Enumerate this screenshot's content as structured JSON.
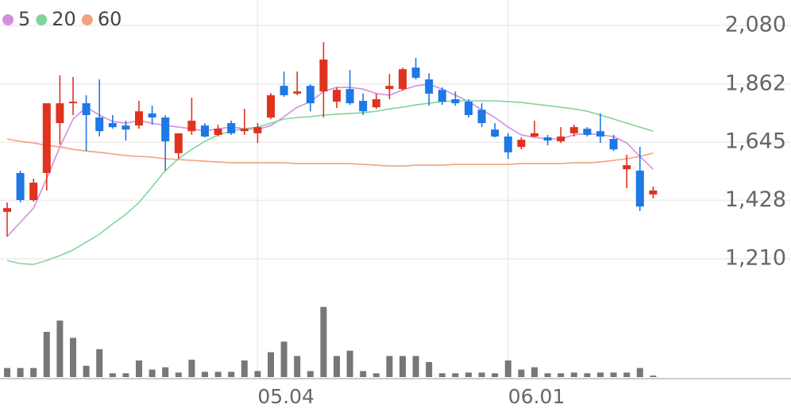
{
  "chart_data": {
    "type": "candlestick",
    "categories": [
      null,
      null,
      null,
      null,
      null,
      null,
      null,
      null,
      null,
      null,
      null,
      null,
      null,
      null,
      null,
      null,
      null,
      null,
      null,
      "05.04",
      null,
      null,
      null,
      null,
      null,
      null,
      null,
      null,
      null,
      null,
      null,
      null,
      null,
      null,
      null,
      null,
      null,
      null,
      "06.01",
      null,
      null,
      null,
      null,
      null,
      null,
      null,
      null,
      null,
      null,
      null
    ],
    "ylim": [
      1145,
      2175
    ],
    "yticks": [
      {
        "value": 2080,
        "label": "2,080"
      },
      {
        "value": 1862,
        "label": "1,862"
      },
      {
        "value": 1645,
        "label": "1,645"
      },
      {
        "value": 1428,
        "label": "1,428"
      },
      {
        "value": 1210,
        "label": "1,210"
      }
    ],
    "grid": true,
    "up_color": "#e0331f",
    "down_color": "#1e78e6",
    "candles": {
      "open": [
        1385,
        1530,
        1429,
        1530,
        1716,
        1790,
        1790,
        1737,
        1716,
        1707,
        1707,
        1752,
        1737,
        1604,
        1686,
        1707,
        1672,
        1716,
        1686,
        1678,
        1737,
        1855,
        1826,
        1855,
        1834,
        1796,
        1843,
        1799,
        1775,
        1843,
        1843,
        1923,
        1879,
        1840,
        1805,
        1796,
        1766,
        1692,
        1666,
        1627,
        1666,
        1663,
        1648,
        1678,
        1695,
        1686,
        1657,
        1544,
        1539,
        1450
      ],
      "high": [
        1420,
        1539,
        1509,
        1790,
        1894,
        1888,
        1820,
        1879,
        1746,
        1725,
        1799,
        1781,
        1746,
        1678,
        1811,
        1716,
        1710,
        1725,
        1769,
        1716,
        1828,
        1908,
        1908,
        1861,
        2018,
        1849,
        1914,
        1826,
        1826,
        1899,
        1923,
        1959,
        1902,
        1849,
        1834,
        1805,
        1790,
        1716,
        1678,
        1663,
        1725,
        1672,
        1701,
        1710,
        1701,
        1752,
        1672,
        1598,
        1627,
        1479
      ],
      "low": [
        1293,
        1420,
        1423,
        1465,
        1636,
        1746,
        1612,
        1666,
        1695,
        1651,
        1695,
        1710,
        1539,
        1583,
        1672,
        1663,
        1666,
        1672,
        1672,
        1642,
        1731,
        1814,
        1820,
        1760,
        1737,
        1772,
        1784,
        1746,
        1769,
        1805,
        1837,
        1879,
        1781,
        1784,
        1781,
        1737,
        1701,
        1663,
        1583,
        1618,
        1663,
        1633,
        1642,
        1666,
        1666,
        1642,
        1612,
        1473,
        1388,
        1435
      ],
      "close": [
        1399,
        1429,
        1494,
        1790,
        1790,
        1796,
        1746,
        1686,
        1701,
        1692,
        1760,
        1737,
        1648,
        1678,
        1725,
        1666,
        1695,
        1678,
        1695,
        1701,
        1820,
        1820,
        1834,
        1790,
        1953,
        1840,
        1790,
        1760,
        1805,
        1855,
        1917,
        1885,
        1826,
        1796,
        1790,
        1746,
        1716,
        1666,
        1607,
        1654,
        1678,
        1651,
        1666,
        1701,
        1672,
        1666,
        1618,
        1559,
        1405,
        1465
      ]
    },
    "series": [
      {
        "name": "5",
        "color": "#d48ee0",
        "values": [
          1293,
          1346,
          1399,
          1509,
          1627,
          1731,
          1775,
          1746,
          1722,
          1716,
          1725,
          1716,
          1707,
          1701,
          1695,
          1686,
          1695,
          1701,
          1695,
          1692,
          1707,
          1740,
          1775,
          1796,
          1834,
          1849,
          1849,
          1843,
          1826,
          1820,
          1840,
          1855,
          1861,
          1843,
          1820,
          1796,
          1766,
          1737,
          1701,
          1672,
          1663,
          1657,
          1657,
          1672,
          1678,
          1672,
          1666,
          1642,
          1592,
          1544
        ]
      },
      {
        "name": "20",
        "color": "#80d69a",
        "values": [
          1204,
          1192,
          1189,
          1204,
          1222,
          1243,
          1272,
          1302,
          1340,
          1376,
          1420,
          1479,
          1539,
          1583,
          1618,
          1648,
          1672,
          1686,
          1695,
          1701,
          1716,
          1731,
          1737,
          1740,
          1746,
          1749,
          1752,
          1755,
          1760,
          1769,
          1775,
          1784,
          1790,
          1796,
          1799,
          1799,
          1799,
          1799,
          1796,
          1793,
          1787,
          1781,
          1775,
          1769,
          1760,
          1746,
          1731,
          1716,
          1701,
          1686
        ]
      },
      {
        "name": "60",
        "color": "#f2a27c",
        "values": [
          1657,
          1648,
          1642,
          1633,
          1627,
          1618,
          1612,
          1607,
          1601,
          1595,
          1592,
          1589,
          1583,
          1580,
          1577,
          1574,
          1571,
          1568,
          1568,
          1568,
          1568,
          1568,
          1565,
          1565,
          1565,
          1565,
          1565,
          1562,
          1559,
          1556,
          1556,
          1559,
          1559,
          1559,
          1562,
          1562,
          1562,
          1562,
          1562,
          1565,
          1565,
          1565,
          1565,
          1568,
          1568,
          1571,
          1577,
          1583,
          1592,
          1604
        ]
      }
    ],
    "volume": {
      "color": "#777777",
      "ylim": [
        0,
        100
      ],
      "values": [
        12,
        12,
        12,
        60,
        75,
        52,
        15,
        37,
        5,
        5,
        22,
        10,
        13,
        6,
        23,
        7,
        7,
        7,
        22,
        8,
        33,
        47,
        28,
        8,
        93,
        28,
        35,
        8,
        5,
        28,
        28,
        28,
        20,
        5,
        5,
        6,
        6,
        5,
        22,
        10,
        13,
        5,
        5,
        6,
        5,
        6,
        6,
        6,
        12,
        2
      ]
    }
  }
}
